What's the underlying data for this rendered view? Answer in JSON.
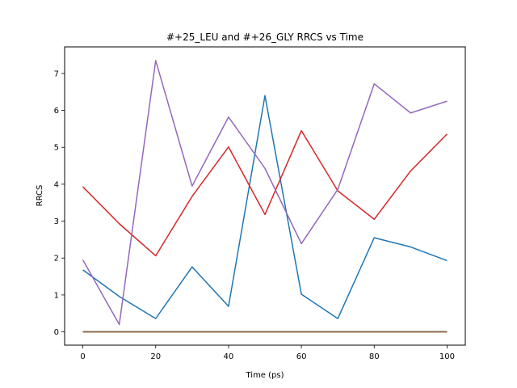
{
  "chart_data": {
    "type": "line",
    "title": "#+25_LEU and #+26_GLY RRCS vs Time",
    "xlabel": "Time (ps)",
    "ylabel": "RRCS",
    "xlim": [
      -5,
      105
    ],
    "ylim": [
      -0.36,
      7.72
    ],
    "xticks": [
      0,
      20,
      40,
      60,
      80,
      100
    ],
    "yticks": [
      0,
      1,
      2,
      3,
      4,
      5,
      6,
      7
    ],
    "grid": false,
    "legend": "none",
    "x": [
      0,
      10,
      20,
      30,
      40,
      50,
      60,
      70,
      80,
      90,
      100
    ],
    "series": [
      {
        "color": "#1f77b4",
        "values": [
          1.68,
          0.96,
          0.36,
          1.76,
          0.69,
          6.4,
          1.02,
          0.36,
          2.55,
          2.3,
          1.93
        ]
      },
      {
        "color": "#ff7f0e",
        "values": [
          0,
          0,
          0,
          0,
          0,
          0,
          0,
          0,
          0,
          0,
          0
        ]
      },
      {
        "color": "#2ca02c",
        "values": [
          0,
          0,
          0,
          0,
          0,
          0,
          0,
          0,
          0,
          0,
          0
        ]
      },
      {
        "color": "#d62728",
        "values": [
          3.93,
          2.93,
          2.06,
          3.67,
          5.01,
          3.18,
          5.45,
          3.82,
          3.05,
          4.36,
          5.36
        ]
      },
      {
        "color": "#9467bd",
        "values": [
          1.95,
          0.2,
          7.35,
          3.95,
          5.82,
          4.43,
          2.39,
          3.86,
          6.72,
          5.93,
          6.25
        ]
      },
      {
        "color": "#8c564b",
        "values": [
          0,
          0,
          0,
          0,
          0,
          0,
          0,
          0,
          0,
          0,
          0
        ]
      }
    ]
  }
}
